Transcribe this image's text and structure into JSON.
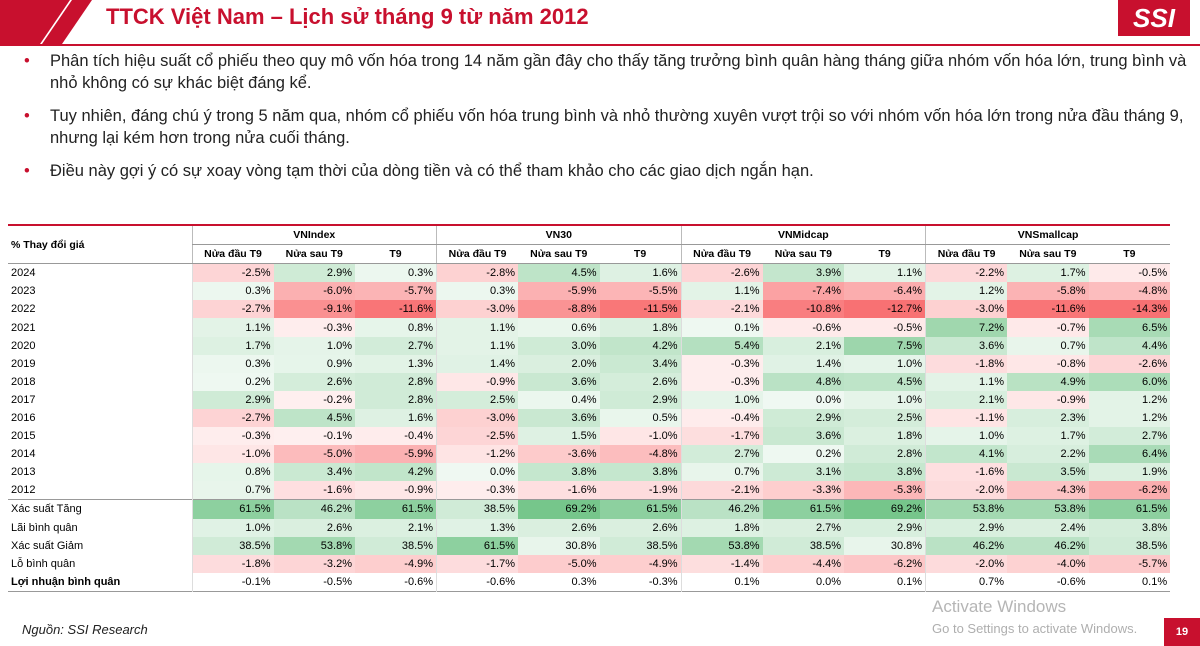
{
  "header": {
    "title": "TTCK Việt Nam – Lịch sử tháng 9 từ năm 2012",
    "logo": "SSI"
  },
  "bullets": [
    "Phân tích hiệu suất cổ phiếu theo quy mô vốn hóa trong 14 năm gần đây cho thấy tăng trưởng bình quân hàng tháng giữa nhóm vốn hóa lớn, trung bình và nhỏ không có sự khác biệt đáng kể.",
    "Tuy nhiên,  đáng chú ý trong 5 năm qua, nhóm cổ phiếu vốn hóa trung bình và nhỏ thường xuyên vượt trội so với nhóm vốn hóa lớn trong nửa đầu tháng 9, nhưng lại kém hơn trong nửa cuối tháng.",
    "Điều này gợi ý có sự xoay vòng tạm thời của dòng tiền và có thể tham khảo cho các giao dịch ngắn hạn."
  ],
  "table": {
    "corner": "% Thay đổi giá",
    "groups": [
      "VNIndex",
      "VN30",
      "VNMidcap",
      "VNSmallcap"
    ],
    "subheaders": [
      "Nửa đầu T9",
      "Nửa sau T9",
      "T9"
    ],
    "rows": [
      [
        "2024",
        "-2.5%",
        "2.9%",
        "0.3%",
        "-2.8%",
        "4.5%",
        "1.6%",
        "-2.6%",
        "3.9%",
        "1.1%",
        "-2.2%",
        "1.7%",
        "-0.5%"
      ],
      [
        "2023",
        "0.3%",
        "-6.0%",
        "-5.7%",
        "0.3%",
        "-5.9%",
        "-5.5%",
        "1.1%",
        "-7.4%",
        "-6.4%",
        "1.2%",
        "-5.8%",
        "-4.8%"
      ],
      [
        "2022",
        "-2.7%",
        "-9.1%",
        "-11.6%",
        "-3.0%",
        "-8.8%",
        "-11.5%",
        "-2.1%",
        "-10.8%",
        "-12.7%",
        "-3.0%",
        "-11.6%",
        "-14.3%"
      ],
      [
        "2021",
        "1.1%",
        "-0.3%",
        "0.8%",
        "1.1%",
        "0.6%",
        "1.8%",
        "0.1%",
        "-0.6%",
        "-0.5%",
        "7.2%",
        "-0.7%",
        "6.5%"
      ],
      [
        "2020",
        "1.7%",
        "1.0%",
        "2.7%",
        "1.1%",
        "3.0%",
        "4.2%",
        "5.4%",
        "2.1%",
        "7.5%",
        "3.6%",
        "0.7%",
        "4.4%"
      ],
      [
        "2019",
        "0.3%",
        "0.9%",
        "1.3%",
        "1.4%",
        "2.0%",
        "3.4%",
        "-0.3%",
        "1.4%",
        "1.0%",
        "-1.8%",
        "-0.8%",
        "-2.6%"
      ],
      [
        "2018",
        "0.2%",
        "2.6%",
        "2.8%",
        "-0.9%",
        "3.6%",
        "2.6%",
        "-0.3%",
        "4.8%",
        "4.5%",
        "1.1%",
        "4.9%",
        "6.0%"
      ],
      [
        "2017",
        "2.9%",
        "-0.2%",
        "2.8%",
        "2.5%",
        "0.4%",
        "2.9%",
        "1.0%",
        "0.0%",
        "1.0%",
        "2.1%",
        "-0.9%",
        "1.2%"
      ],
      [
        "2016",
        "-2.7%",
        "4.5%",
        "1.6%",
        "-3.0%",
        "3.6%",
        "0.5%",
        "-0.4%",
        "2.9%",
        "2.5%",
        "-1.1%",
        "2.3%",
        "1.2%"
      ],
      [
        "2015",
        "-0.3%",
        "-0.1%",
        "-0.4%",
        "-2.5%",
        "1.5%",
        "-1.0%",
        "-1.7%",
        "3.6%",
        "1.8%",
        "1.0%",
        "1.7%",
        "2.7%"
      ],
      [
        "2014",
        "-1.0%",
        "-5.0%",
        "-5.9%",
        "-1.2%",
        "-3.6%",
        "-4.8%",
        "2.7%",
        "0.2%",
        "2.8%",
        "4.1%",
        "2.2%",
        "6.4%"
      ],
      [
        "2013",
        "0.8%",
        "3.4%",
        "4.2%",
        "0.0%",
        "3.8%",
        "3.8%",
        "0.7%",
        "3.1%",
        "3.8%",
        "-1.6%",
        "3.5%",
        "1.9%"
      ],
      [
        "2012",
        "0.7%",
        "-1.6%",
        "-0.9%",
        "-0.3%",
        "-1.6%",
        "-1.9%",
        "-2.1%",
        "-3.3%",
        "-5.3%",
        "-2.0%",
        "-4.3%",
        "-6.2%"
      ],
      [
        "Xác suất Tăng",
        "61.5%",
        "46.2%",
        "61.5%",
        "38.5%",
        "69.2%",
        "61.5%",
        "46.2%",
        "61.5%",
        "69.2%",
        "53.8%",
        "53.8%",
        "61.5%"
      ],
      [
        "Lãi bình quân",
        "1.0%",
        "2.6%",
        "2.1%",
        "1.3%",
        "2.6%",
        "2.6%",
        "1.8%",
        "2.7%",
        "2.9%",
        "2.9%",
        "2.4%",
        "3.8%"
      ],
      [
        "Xác suất Giảm",
        "38.5%",
        "53.8%",
        "38.5%",
        "61.5%",
        "30.8%",
        "38.5%",
        "53.8%",
        "38.5%",
        "30.8%",
        "46.2%",
        "46.2%",
        "38.5%"
      ],
      [
        "Lỗ bình quân",
        "-1.8%",
        "-3.2%",
        "-4.9%",
        "-1.7%",
        "-5.0%",
        "-4.9%",
        "-1.4%",
        "-4.4%",
        "-6.2%",
        "-2.0%",
        "-4.0%",
        "-5.7%"
      ],
      [
        "Lợi nhuận bình quân",
        "-0.1%",
        "-0.5%",
        "-0.6%",
        "-0.6%",
        "0.3%",
        "-0.3%",
        "0.1%",
        "0.0%",
        "0.1%",
        "0.7%",
        "-0.6%",
        "0.1%"
      ]
    ]
  },
  "footer": {
    "source": "Nguồn: SSI Research",
    "page": "19",
    "watermark": [
      "Activate Windows",
      "Go to Settings to activate Windows."
    ]
  }
}
